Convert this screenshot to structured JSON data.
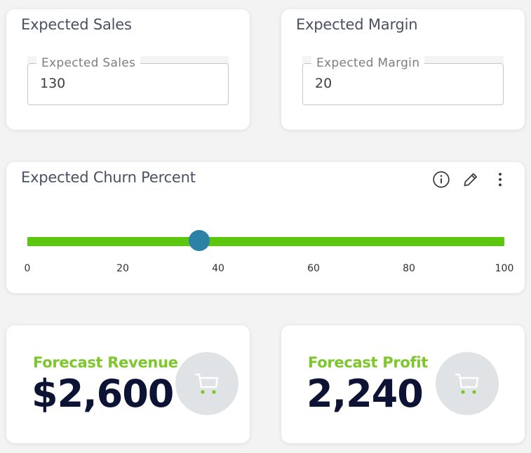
{
  "sales_card": {
    "title": "Expected Sales",
    "field_label": "Expected Sales",
    "value": "130"
  },
  "margin_card": {
    "title": "Expected Margin",
    "field_label": "Expected Margin",
    "value": "20"
  },
  "churn_card": {
    "title": "Expected Churn Percent",
    "icons": [
      "info-icon",
      "pencil-icon",
      "more-vertical-icon"
    ],
    "slider": {
      "min": 0,
      "max": 100,
      "value": 36,
      "ticks": [
        "0",
        "20",
        "40",
        "60",
        "80",
        "100"
      ],
      "track_color": "#5bc80e",
      "thumb_color": "#2b82a6"
    }
  },
  "revenue_card": {
    "label": "Forecast Revenue",
    "value": "$2,600",
    "icon": "shopping-cart-icon"
  },
  "profit_card": {
    "label": "Forecast Profit",
    "value": "2,240",
    "icon": "shopping-cart-icon"
  },
  "colors": {
    "kpi_label": "#7cc72a",
    "kpi_value": "#0d1335",
    "title": "#4a5161"
  }
}
